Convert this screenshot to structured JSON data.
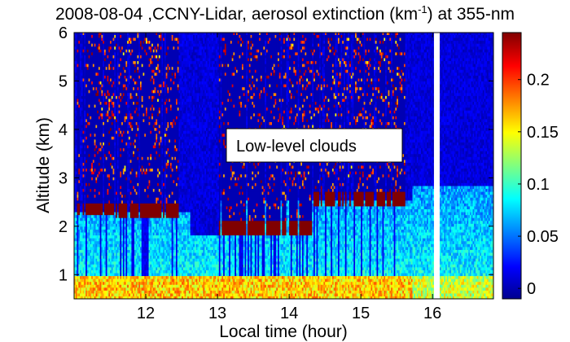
{
  "chart_data": {
    "type": "heatmap",
    "title_parts": {
      "prefix": "2008-08-04 ,CCNY-Lidar, aerosol extinction (km",
      "superscript": "-1",
      "suffix": ") at 355-nm"
    },
    "xlabel": "Local time (hour)",
    "ylabel": "Altitude (km)",
    "x_ticks": [
      "12",
      "13",
      "14",
      "15",
      "16"
    ],
    "y_ticks": [
      "1",
      "2",
      "3",
      "4",
      "5",
      "6"
    ],
    "xlim": [
      11.0,
      16.85
    ],
    "ylim": [
      0.5,
      6.0
    ],
    "colorbar": {
      "ticks": [
        "0",
        "0.05",
        "0.1",
        "0.15",
        "0.2"
      ],
      "range": [
        -0.01,
        0.245
      ],
      "colormap": "jet"
    },
    "annotation": "Low-level clouds",
    "data_gap_hours": [
      16.0,
      16.08
    ],
    "cloud_layer_base_km_by_period": [
      {
        "from": 11.0,
        "to": 11.55,
        "base_km": 2.2
      },
      {
        "from": 11.55,
        "to": 12.45,
        "base_km": 2.15
      },
      {
        "from": 13.0,
        "to": 14.3,
        "base_km": 1.8
      },
      {
        "from": 14.3,
        "to": 15.6,
        "base_km": 2.4
      }
    ],
    "colors": {
      "background": "#00008f",
      "cloud": "#800000",
      "boundary_layer": "#1a7fd0",
      "near_surface": "#e8e600"
    }
  }
}
